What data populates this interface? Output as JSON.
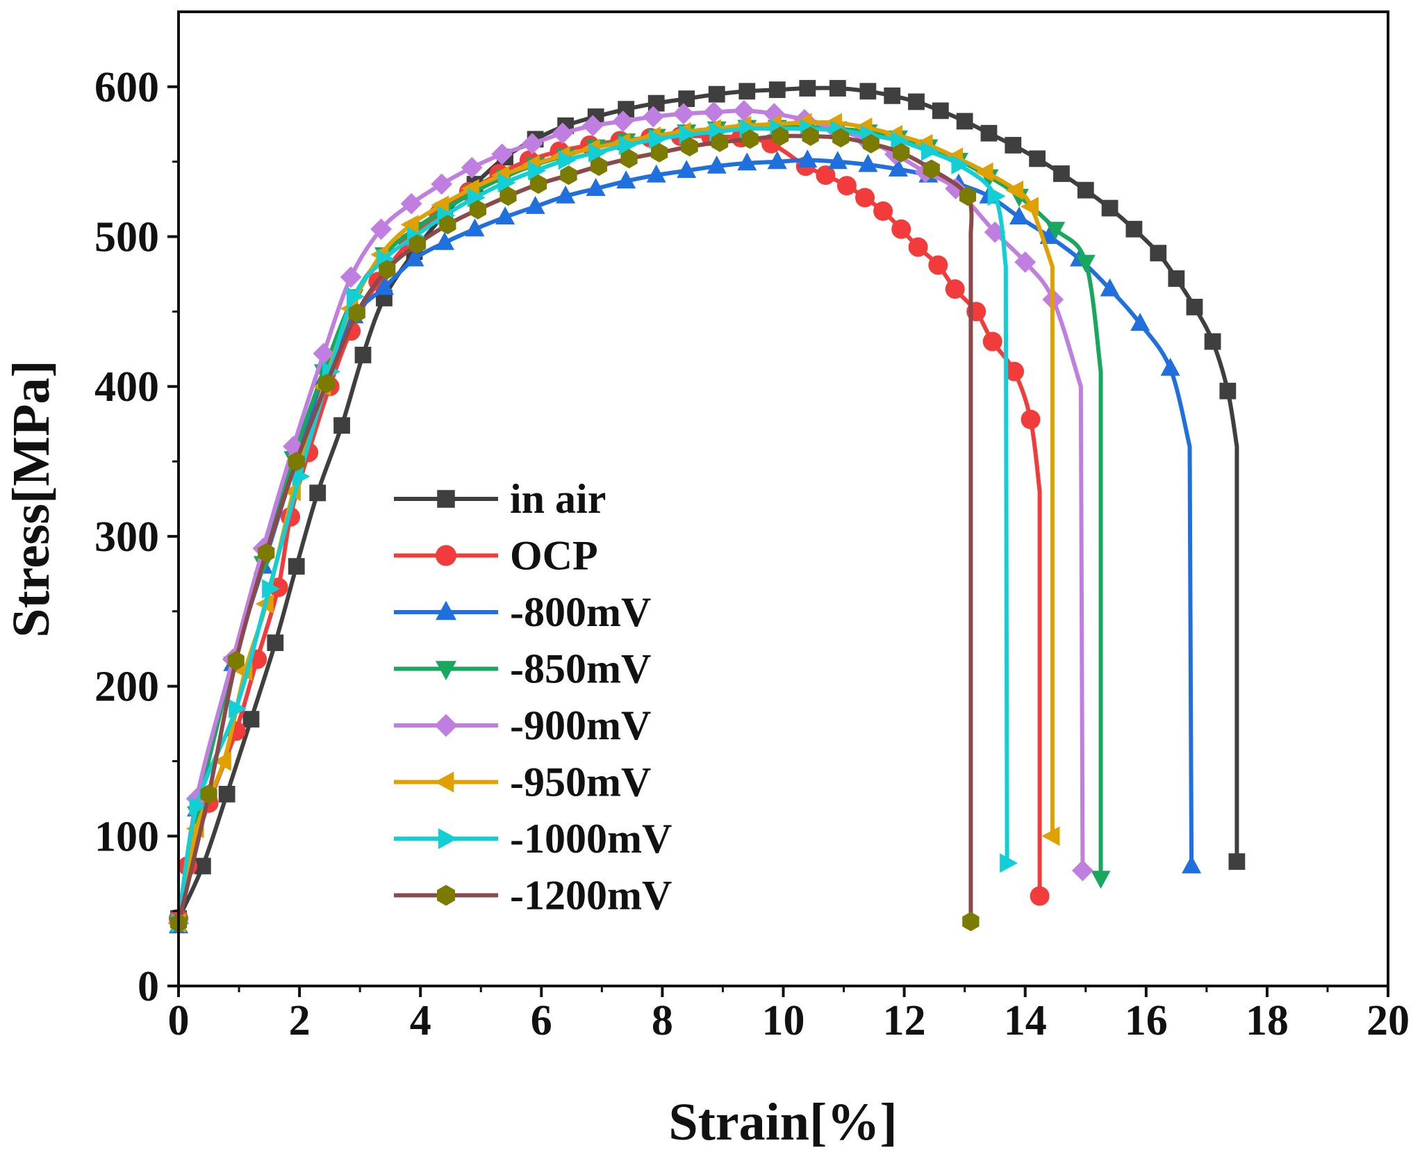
{
  "chart_data": {
    "type": "line",
    "title": "",
    "xlabel": "Strain[%]",
    "ylabel": "Stress[MPa]",
    "xlim": [
      0,
      20
    ],
    "ylim": [
      0,
      650
    ],
    "xticks": [
      0,
      2,
      4,
      6,
      8,
      10,
      12,
      14,
      16,
      18,
      20
    ],
    "yticks": [
      0,
      100,
      200,
      300,
      400,
      500,
      600
    ],
    "grid": false,
    "legend_position": "center-left",
    "series": [
      {
        "name": "in air",
        "color": "#3f3f3f",
        "marker_color": "#3f3f3f",
        "marker": "square",
        "points": [
          [
            0,
            45
          ],
          [
            0.4,
            80
          ],
          [
            0.8,
            128
          ],
          [
            1.2,
            178
          ],
          [
            1.6,
            229
          ],
          [
            1.95,
            280
          ],
          [
            2.3,
            329
          ],
          [
            2.7,
            374
          ],
          [
            3.05,
            421
          ],
          [
            3.4,
            459
          ],
          [
            3.9,
            490
          ],
          [
            4.4,
            515
          ],
          [
            4.9,
            535
          ],
          [
            5.4,
            553
          ],
          [
            5.9,
            565
          ],
          [
            6.4,
            574
          ],
          [
            6.9,
            580
          ],
          [
            7.4,
            585
          ],
          [
            7.9,
            589
          ],
          [
            8.4,
            592
          ],
          [
            8.9,
            595
          ],
          [
            9.4,
            597
          ],
          [
            9.9,
            598
          ],
          [
            10.4,
            599
          ],
          [
            10.9,
            599
          ],
          [
            11.4,
            597
          ],
          [
            11.8,
            594
          ],
          [
            12.2,
            590
          ],
          [
            12.6,
            584
          ],
          [
            13.0,
            577
          ],
          [
            13.4,
            569
          ],
          [
            13.8,
            561
          ],
          [
            14.2,
            552
          ],
          [
            14.6,
            542
          ],
          [
            15.0,
            531
          ],
          [
            15.4,
            519
          ],
          [
            15.8,
            505
          ],
          [
            16.2,
            489
          ],
          [
            16.5,
            472
          ],
          [
            16.8,
            453
          ],
          [
            17.1,
            430
          ],
          [
            17.35,
            397
          ]
        ],
        "knee": [
          17.5,
          360
        ],
        "end": [
          17.5,
          83
        ]
      },
      {
        "name": "OCP",
        "color": "#f23b3b",
        "marker_color": "#f23b3b",
        "marker": "circle",
        "points": [
          [
            0,
            45
          ],
          [
            0.15,
            80
          ],
          [
            0.5,
            122
          ],
          [
            0.95,
            170
          ],
          [
            1.3,
            218
          ],
          [
            1.65,
            266
          ],
          [
            1.85,
            313
          ],
          [
            2.15,
            356
          ],
          [
            2.5,
            400
          ],
          [
            2.85,
            437
          ],
          [
            3.3,
            470
          ],
          [
            3.8,
            496
          ],
          [
            4.3,
            515
          ],
          [
            4.8,
            530
          ],
          [
            5.3,
            542
          ],
          [
            5.8,
            551
          ],
          [
            6.3,
            557
          ],
          [
            6.8,
            561
          ],
          [
            7.3,
            564
          ],
          [
            7.8,
            566
          ],
          [
            8.3,
            567
          ],
          [
            8.8,
            567
          ],
          [
            9.3,
            566
          ],
          [
            9.8,
            562
          ],
          [
            10.37,
            547
          ],
          [
            10.7,
            541
          ],
          [
            11.05,
            534
          ],
          [
            11.35,
            526
          ],
          [
            11.65,
            517
          ],
          [
            11.95,
            505
          ],
          [
            12.23,
            493
          ],
          [
            12.56,
            481
          ],
          [
            12.84,
            465
          ],
          [
            13.19,
            450
          ],
          [
            13.46,
            430
          ],
          [
            13.82,
            410
          ],
          [
            14.09,
            378
          ]
        ],
        "knee": [
          14.24,
          330
        ],
        "end": [
          14.24,
          60
        ]
      },
      {
        "name": "-800mV",
        "color": "#1f6fdf",
        "marker_color": "#1f6fdf",
        "marker": "triangle-up",
        "points": [
          [
            0,
            40
          ],
          [
            0.3,
            118
          ],
          [
            0.9,
            215
          ],
          [
            1.4,
            280
          ],
          [
            1.9,
            345
          ],
          [
            2.4,
            405
          ],
          [
            2.9,
            447
          ],
          [
            3.4,
            466
          ],
          [
            3.9,
            485
          ],
          [
            4.4,
            496
          ],
          [
            4.9,
            505
          ],
          [
            5.4,
            513
          ],
          [
            5.9,
            520
          ],
          [
            6.4,
            527
          ],
          [
            6.9,
            532
          ],
          [
            7.4,
            537
          ],
          [
            7.9,
            541
          ],
          [
            8.4,
            544
          ],
          [
            8.9,
            547
          ],
          [
            9.4,
            549
          ],
          [
            9.9,
            550
          ],
          [
            10.4,
            551
          ],
          [
            10.9,
            550
          ],
          [
            11.4,
            548
          ],
          [
            11.9,
            545
          ],
          [
            12.4,
            541
          ],
          [
            12.9,
            535
          ],
          [
            13.4,
            527
          ],
          [
            13.9,
            513
          ],
          [
            14.4,
            500
          ],
          [
            14.9,
            485
          ],
          [
            15.4,
            465
          ],
          [
            15.9,
            442
          ],
          [
            16.4,
            412
          ]
        ],
        "knee": [
          16.72,
          360
        ],
        "end": [
          16.75,
          80
        ]
      },
      {
        "name": "-850mV",
        "color": "#17a85e",
        "marker_color": "#17a85e",
        "marker": "triangle-down",
        "points": [
          [
            0,
            42
          ],
          [
            0.3,
            115
          ],
          [
            0.9,
            215
          ],
          [
            1.4,
            282
          ],
          [
            1.9,
            352
          ],
          [
            2.4,
            410
          ],
          [
            2.9,
            460
          ],
          [
            3.4,
            488
          ],
          [
            3.9,
            505
          ],
          [
            4.4,
            518
          ],
          [
            4.9,
            530
          ],
          [
            5.4,
            540
          ],
          [
            5.9,
            548
          ],
          [
            6.4,
            554
          ],
          [
            6.9,
            560
          ],
          [
            7.4,
            564
          ],
          [
            7.9,
            567
          ],
          [
            8.4,
            570
          ],
          [
            8.9,
            572
          ],
          [
            9.4,
            573
          ],
          [
            9.9,
            573
          ],
          [
            10.4,
            573
          ],
          [
            10.9,
            572
          ],
          [
            11.4,
            570
          ],
          [
            11.9,
            566
          ],
          [
            12.4,
            560
          ],
          [
            12.9,
            551
          ],
          [
            13.4,
            540
          ],
          [
            13.9,
            527
          ],
          [
            14.5,
            505
          ],
          [
            15.0,
            483
          ]
        ],
        "knee": [
          15.25,
          410
        ],
        "end": [
          15.25,
          72
        ]
      },
      {
        "name": "-900mV",
        "color": "#c07fe0",
        "marker_color": "#c07fe0",
        "marker": "diamond",
        "points": [
          [
            0,
            42
          ],
          [
            0.3,
            125
          ],
          [
            0.9,
            218
          ],
          [
            1.4,
            292
          ],
          [
            1.9,
            360
          ],
          [
            2.4,
            422
          ],
          [
            2.85,
            473
          ],
          [
            3.35,
            505
          ],
          [
            3.85,
            522
          ],
          [
            4.35,
            535
          ],
          [
            4.85,
            546
          ],
          [
            5.35,
            555
          ],
          [
            5.85,
            562
          ],
          [
            6.35,
            569
          ],
          [
            6.85,
            574
          ],
          [
            7.35,
            577
          ],
          [
            7.85,
            580
          ],
          [
            8.35,
            582
          ],
          [
            8.85,
            583
          ],
          [
            9.35,
            584
          ],
          [
            9.85,
            582
          ],
          [
            10.35,
            578
          ],
          [
            10.85,
            572
          ],
          [
            11.35,
            565
          ],
          [
            11.85,
            555
          ],
          [
            12.35,
            543
          ],
          [
            12.85,
            532
          ],
          [
            13.5,
            503
          ],
          [
            14.0,
            483
          ],
          [
            14.46,
            458
          ]
        ],
        "knee": [
          14.92,
          400
        ],
        "end": [
          14.95,
          77
        ]
      },
      {
        "name": "-950mV",
        "color": "#e0a000",
        "marker_color": "#e0a000",
        "marker": "triangle-left",
        "points": [
          [
            0,
            42
          ],
          [
            0.3,
            105
          ],
          [
            0.75,
            150
          ],
          [
            1.1,
            210
          ],
          [
            1.45,
            255
          ],
          [
            1.9,
            330
          ],
          [
            2.4,
            400
          ],
          [
            2.85,
            452
          ],
          [
            3.35,
            488
          ],
          [
            3.85,
            508
          ],
          [
            4.35,
            521
          ],
          [
            4.85,
            532
          ],
          [
            5.35,
            541
          ],
          [
            5.85,
            548
          ],
          [
            6.35,
            554
          ],
          [
            6.85,
            559
          ],
          [
            7.35,
            563
          ],
          [
            7.85,
            567
          ],
          [
            8.35,
            570
          ],
          [
            8.85,
            572
          ],
          [
            9.35,
            574
          ],
          [
            9.85,
            575
          ],
          [
            10.35,
            576
          ],
          [
            10.85,
            576
          ],
          [
            11.35,
            573
          ],
          [
            11.85,
            568
          ],
          [
            12.35,
            562
          ],
          [
            12.85,
            553
          ],
          [
            13.35,
            543
          ],
          [
            13.85,
            531
          ],
          [
            14.1,
            520
          ]
        ],
        "knee": [
          14.45,
          480
        ],
        "end": [
          14.45,
          100
        ]
      },
      {
        "name": "-1000mV",
        "color": "#12cfd6",
        "marker_color": "#12cfd6",
        "marker": "triangle-right",
        "points": [
          [
            0,
            42
          ],
          [
            0.3,
            120
          ],
          [
            0.95,
            185
          ],
          [
            1.5,
            265
          ],
          [
            2.0,
            340
          ],
          [
            2.5,
            410
          ],
          [
            2.9,
            460
          ],
          [
            3.4,
            485
          ],
          [
            3.9,
            500
          ],
          [
            4.4,
            514
          ],
          [
            4.9,
            526
          ],
          [
            5.4,
            536
          ],
          [
            5.9,
            544
          ],
          [
            6.4,
            551
          ],
          [
            6.9,
            556
          ],
          [
            7.4,
            561
          ],
          [
            7.9,
            565
          ],
          [
            8.4,
            568
          ],
          [
            8.9,
            570
          ],
          [
            9.4,
            572
          ],
          [
            9.9,
            572
          ],
          [
            10.4,
            572
          ],
          [
            10.9,
            571
          ],
          [
            11.4,
            568
          ],
          [
            11.9,
            564
          ],
          [
            12.4,
            557
          ],
          [
            12.9,
            548
          ],
          [
            13.5,
            527
          ]
        ],
        "knee": [
          13.68,
          480
        ],
        "end": [
          13.7,
          82
        ]
      },
      {
        "name": "-1200mV",
        "color": "#8a4a4a",
        "marker_color": "#7b7b00",
        "marker": "hexagon",
        "points": [
          [
            0,
            42
          ],
          [
            0.5,
            128
          ],
          [
            0.95,
            217
          ],
          [
            1.45,
            289
          ],
          [
            1.95,
            350
          ],
          [
            2.45,
            402
          ],
          [
            2.95,
            449
          ],
          [
            3.45,
            478
          ],
          [
            3.95,
            495
          ],
          [
            4.45,
            508
          ],
          [
            4.95,
            518
          ],
          [
            5.45,
            527
          ],
          [
            5.95,
            535
          ],
          [
            6.45,
            541
          ],
          [
            6.95,
            547
          ],
          [
            7.45,
            552
          ],
          [
            7.95,
            556
          ],
          [
            8.45,
            560
          ],
          [
            8.95,
            563
          ],
          [
            9.45,
            565
          ],
          [
            9.95,
            567
          ],
          [
            10.45,
            567
          ],
          [
            10.95,
            566
          ],
          [
            11.45,
            562
          ],
          [
            11.95,
            556
          ],
          [
            12.45,
            545
          ],
          [
            13.05,
            527
          ]
        ],
        "knee": [
          13.1,
          500
        ],
        "end": [
          13.1,
          43
        ]
      }
    ]
  }
}
